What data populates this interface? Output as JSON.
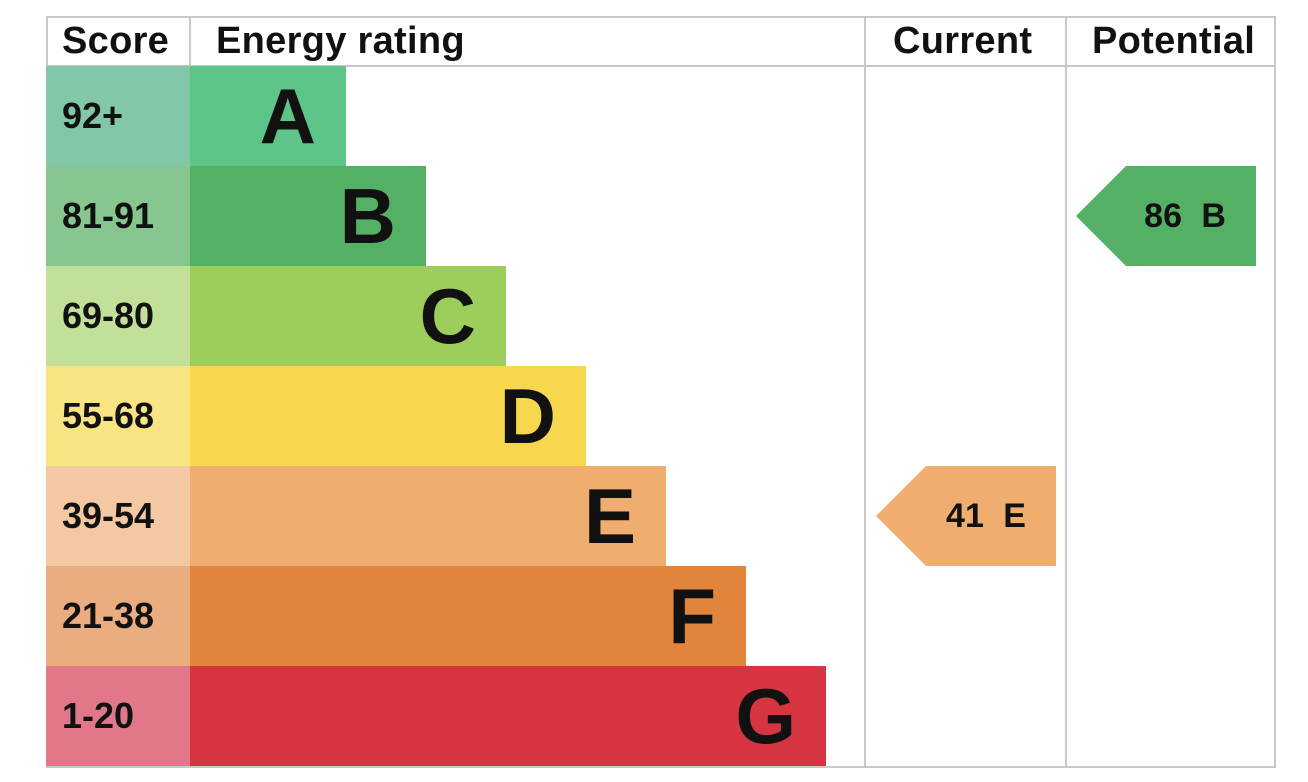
{
  "headers": {
    "score": "Score",
    "energy_rating": "Energy rating",
    "current": "Current",
    "potential": "Potential"
  },
  "chart_data": {
    "type": "bar",
    "bands": [
      {
        "score": "92+",
        "letter": "A",
        "bar_color": "#5cc587",
        "score_bg": "#82c8a8"
      },
      {
        "score": "81-91",
        "letter": "B",
        "bar_color": "#53b065",
        "score_bg": "#87c68e"
      },
      {
        "score": "69-80",
        "letter": "C",
        "bar_color": "#9dcd5b",
        "score_bg": "#c2e09a"
      },
      {
        "score": "55-68",
        "letter": "D",
        "bar_color": "#f6d74d",
        "score_bg": "#f9e484"
      },
      {
        "score": "39-54",
        "letter": "E",
        "bar_color": "#efad70",
        "score_bg": "#f4c8a3"
      },
      {
        "score": "21-38",
        "letter": "F",
        "bar_color": "#e0853b",
        "score_bg": "#e9ad80"
      },
      {
        "score": "1-20",
        "letter": "G",
        "bar_color": "#d63441",
        "score_bg": "#e27789"
      }
    ],
    "current": {
      "value": 41,
      "band": "E",
      "label": "41 E",
      "color": "#efad70"
    },
    "potential": {
      "value": 86,
      "band": "B",
      "label": "86 B",
      "color": "#53b065"
    }
  }
}
